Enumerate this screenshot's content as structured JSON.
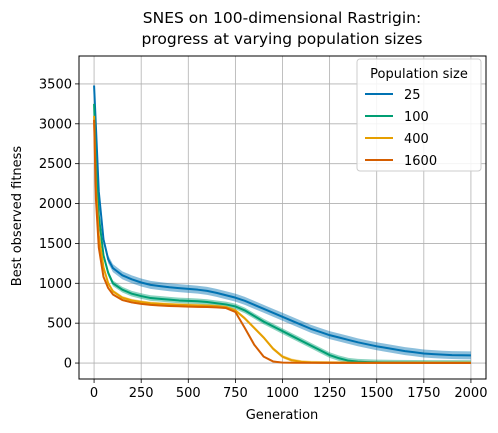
{
  "chart_data": {
    "type": "line",
    "title": [
      "SNES on 100-dimensional Rastrigin:",
      "progress at varying population sizes"
    ],
    "xlabel": "Generation",
    "ylabel": "Best observed fitness",
    "xlim": [
      -80,
      2080
    ],
    "ylim": [
      -200,
      3850
    ],
    "xticks": [
      0,
      250,
      500,
      750,
      1000,
      1250,
      1500,
      1750,
      2000
    ],
    "yticks": [
      0,
      500,
      1000,
      1500,
      2000,
      2500,
      3000,
      3500
    ],
    "grid": true,
    "legend": {
      "title": "Population size",
      "placement": "top-right"
    },
    "series": [
      {
        "name": "25",
        "color": "#0072b2",
        "band": 50,
        "points": [
          [
            0,
            3480
          ],
          [
            10,
            2950
          ],
          [
            25,
            2150
          ],
          [
            50,
            1550
          ],
          [
            75,
            1300
          ],
          [
            100,
            1190
          ],
          [
            150,
            1100
          ],
          [
            200,
            1050
          ],
          [
            250,
            1010
          ],
          [
            300,
            980
          ],
          [
            350,
            965
          ],
          [
            400,
            950
          ],
          [
            450,
            940
          ],
          [
            500,
            930
          ],
          [
            550,
            920
          ],
          [
            600,
            905
          ],
          [
            650,
            880
          ],
          [
            700,
            850
          ],
          [
            750,
            820
          ],
          [
            800,
            780
          ],
          [
            850,
            730
          ],
          [
            900,
            680
          ],
          [
            950,
            630
          ],
          [
            1000,
            580
          ],
          [
            1050,
            530
          ],
          [
            1100,
            480
          ],
          [
            1150,
            430
          ],
          [
            1200,
            390
          ],
          [
            1250,
            350
          ],
          [
            1300,
            320
          ],
          [
            1350,
            290
          ],
          [
            1400,
            260
          ],
          [
            1450,
            235
          ],
          [
            1500,
            210
          ],
          [
            1550,
            190
          ],
          [
            1600,
            170
          ],
          [
            1650,
            150
          ],
          [
            1700,
            135
          ],
          [
            1750,
            120
          ],
          [
            1800,
            112
          ],
          [
            1850,
            105
          ],
          [
            1900,
            100
          ],
          [
            1950,
            98
          ],
          [
            2000,
            96
          ]
        ]
      },
      {
        "name": "100",
        "color": "#009e73",
        "band": 35,
        "points": [
          [
            0,
            3250
          ],
          [
            10,
            2500
          ],
          [
            25,
            1850
          ],
          [
            50,
            1350
          ],
          [
            75,
            1130
          ],
          [
            100,
            1000
          ],
          [
            150,
            920
          ],
          [
            200,
            870
          ],
          [
            250,
            840
          ],
          [
            300,
            815
          ],
          [
            350,
            805
          ],
          [
            400,
            795
          ],
          [
            450,
            785
          ],
          [
            500,
            780
          ],
          [
            550,
            775
          ],
          [
            600,
            765
          ],
          [
            650,
            750
          ],
          [
            700,
            735
          ],
          [
            750,
            710
          ],
          [
            800,
            660
          ],
          [
            850,
            590
          ],
          [
            900,
            520
          ],
          [
            950,
            460
          ],
          [
            1000,
            400
          ],
          [
            1050,
            340
          ],
          [
            1100,
            280
          ],
          [
            1150,
            220
          ],
          [
            1200,
            160
          ],
          [
            1250,
            100
          ],
          [
            1300,
            60
          ],
          [
            1350,
            30
          ],
          [
            1400,
            18
          ],
          [
            1450,
            12
          ],
          [
            1500,
            8
          ],
          [
            1600,
            5
          ],
          [
            1700,
            3
          ],
          [
            1800,
            2
          ],
          [
            2000,
            2
          ]
        ]
      },
      {
        "name": "400",
        "color": "#e69f00",
        "band": 20,
        "points": [
          [
            0,
            3100
          ],
          [
            10,
            2200
          ],
          [
            25,
            1600
          ],
          [
            50,
            1200
          ],
          [
            75,
            1000
          ],
          [
            100,
            900
          ],
          [
            150,
            820
          ],
          [
            200,
            785
          ],
          [
            250,
            765
          ],
          [
            300,
            750
          ],
          [
            350,
            742
          ],
          [
            400,
            735
          ],
          [
            450,
            730
          ],
          [
            500,
            726
          ],
          [
            550,
            722
          ],
          [
            600,
            718
          ],
          [
            650,
            712
          ],
          [
            700,
            700
          ],
          [
            750,
            660
          ],
          [
            800,
            560
          ],
          [
            850,
            440
          ],
          [
            900,
            320
          ],
          [
            950,
            180
          ],
          [
            1000,
            80
          ],
          [
            1050,
            35
          ],
          [
            1100,
            15
          ],
          [
            1150,
            8
          ],
          [
            1200,
            5
          ],
          [
            1300,
            3
          ],
          [
            1500,
            2
          ],
          [
            2000,
            2
          ]
        ]
      },
      {
        "name": "1600",
        "color": "#d55e00",
        "band": 10,
        "points": [
          [
            0,
            3050
          ],
          [
            10,
            2050
          ],
          [
            25,
            1450
          ],
          [
            50,
            1080
          ],
          [
            75,
            940
          ],
          [
            100,
            860
          ],
          [
            150,
            790
          ],
          [
            200,
            760
          ],
          [
            250,
            742
          ],
          [
            300,
            730
          ],
          [
            350,
            722
          ],
          [
            400,
            716
          ],
          [
            450,
            712
          ],
          [
            500,
            708
          ],
          [
            550,
            705
          ],
          [
            600,
            702
          ],
          [
            650,
            698
          ],
          [
            700,
            690
          ],
          [
            750,
            640
          ],
          [
            800,
            440
          ],
          [
            850,
            230
          ],
          [
            900,
            80
          ],
          [
            950,
            20
          ],
          [
            1000,
            6
          ],
          [
            1050,
            3
          ],
          [
            1200,
            2
          ],
          [
            2000,
            1
          ]
        ]
      }
    ]
  }
}
